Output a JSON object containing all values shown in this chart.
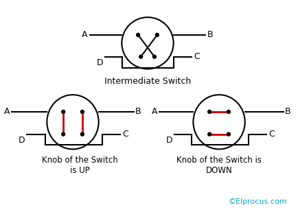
{
  "bg_color": "#ffffff",
  "line_color": "#000000",
  "red_color": "#cc0000",
  "cyan_color": "#00aacc",
  "title1": "Intermediate Switch",
  "title2": "Knob of the Switch\nis UP",
  "title3": "Knob of the Switch is\nDOWN",
  "watermark": "©Elprocus.com",
  "figsize": [
    4.34,
    3.09
  ],
  "dpi": 100
}
